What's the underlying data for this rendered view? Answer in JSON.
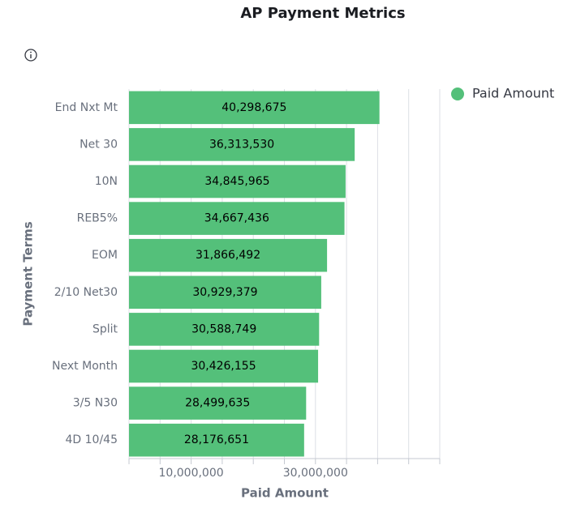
{
  "chart_data": {
    "type": "barh",
    "title": "AP Payment Metrics",
    "x_label": "Paid Amount",
    "y_label": "Payment Terms",
    "categories": [
      "End Nxt Mt",
      "Net 30",
      "10N",
      "REB5%",
      "EOM",
      "2/10 Net30",
      "Split",
      "Next Month",
      "3/5 N30",
      "4D 10/45"
    ],
    "series": [
      {
        "name": "Paid Amount",
        "color": "#54c07a",
        "values": [
          40298675,
          36313530,
          34845965,
          34667436,
          31866492,
          30929379,
          30588749,
          30426155,
          28499635,
          28176651
        ],
        "value_labels": [
          "40,298,675",
          "36,313,530",
          "34,845,965",
          "34,667,436",
          "31,866,492",
          "30,929,379",
          "30,588,749",
          "30,426,155",
          "28,499,635",
          "28,176,651"
        ]
      }
    ],
    "xlim": [
      0,
      50000000
    ],
    "xticks": [
      {
        "value": 0,
        "label": null
      },
      {
        "value": 5000000,
        "label": null
      },
      {
        "value": 10000000,
        "label": "10,000,000"
      },
      {
        "value": 15000000,
        "label": null
      },
      {
        "value": 20000000,
        "label": null
      },
      {
        "value": 25000000,
        "label": null
      },
      {
        "value": 30000000,
        "label": "30,000,000"
      },
      {
        "value": 35000000,
        "label": null
      },
      {
        "value": 40000000,
        "label": null
      },
      {
        "value": 45000000,
        "label": null
      },
      {
        "value": 50000000,
        "label": null
      }
    ],
    "grid": true,
    "legend": "top-right"
  }
}
